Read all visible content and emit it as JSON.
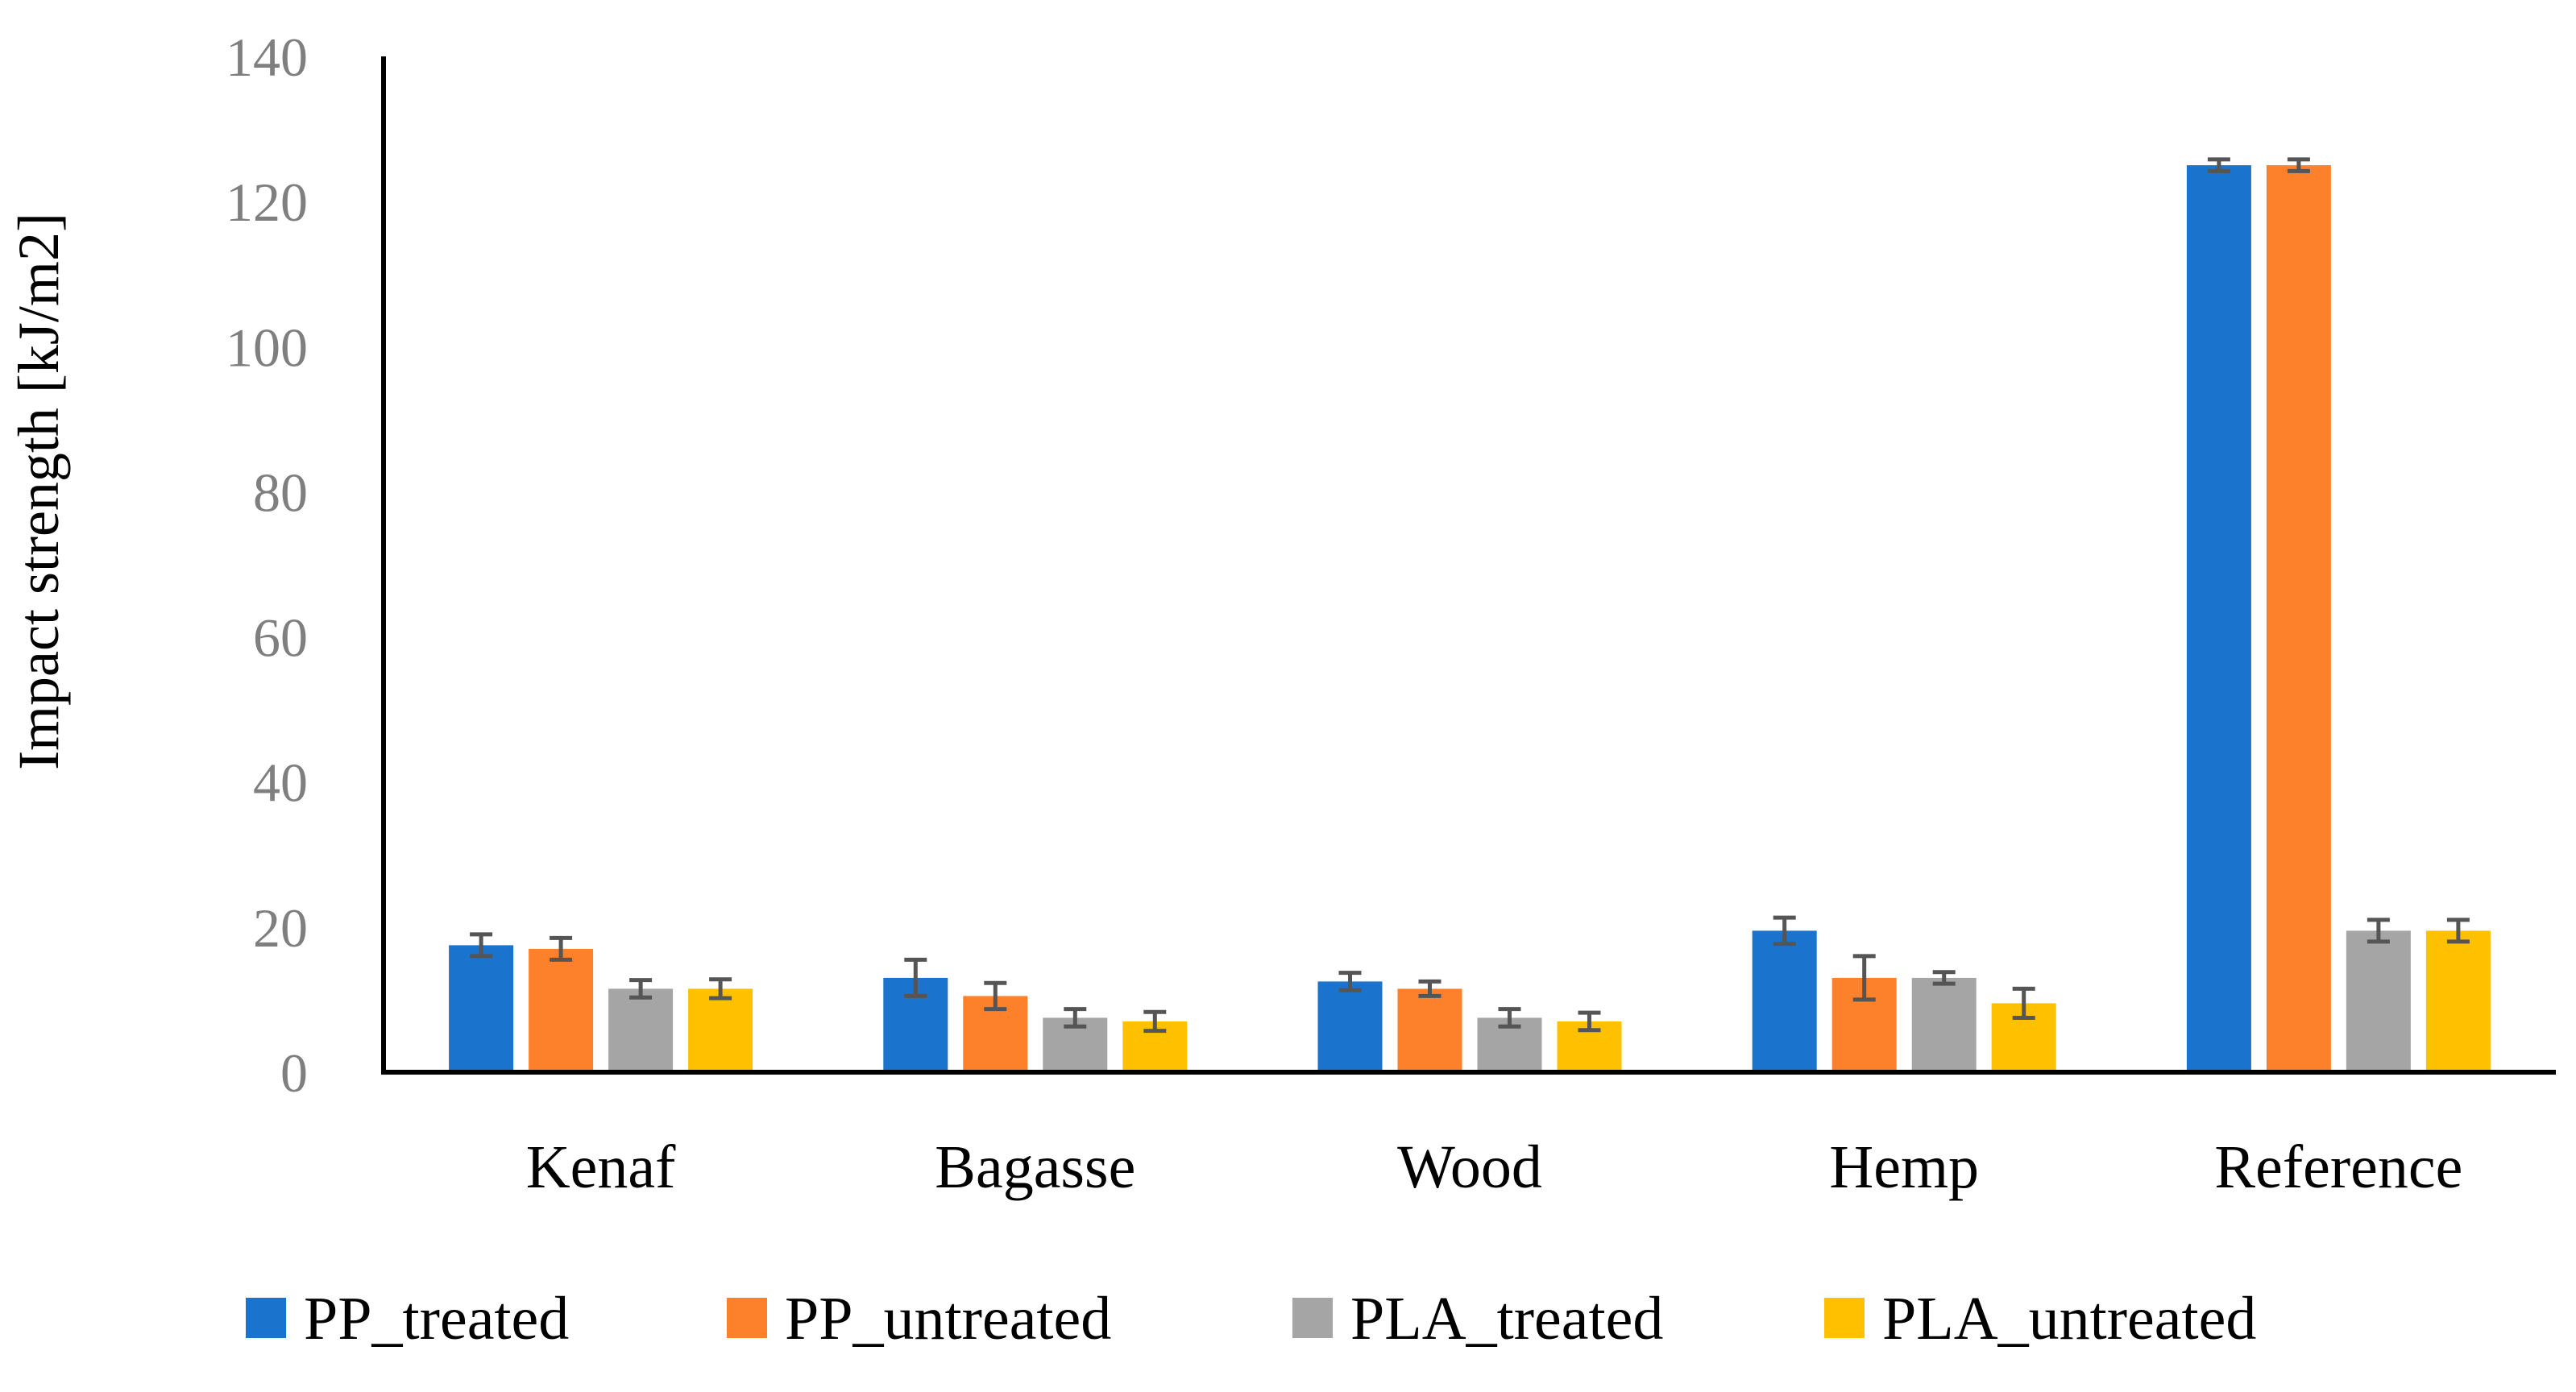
{
  "chart_data": {
    "type": "bar",
    "title": "",
    "xlabel": "",
    "ylabel": "Impact strength [kJ/m2]",
    "ylim": [
      0,
      140
    ],
    "yticks": [
      0,
      20,
      40,
      60,
      80,
      100,
      120,
      140
    ],
    "grid": false,
    "legend_position": "bottom",
    "categories": [
      "Kenaf",
      "Bagasse",
      "Wood",
      "Hemp",
      "Reference"
    ],
    "series": [
      {
        "name": "PP_treated",
        "color": "#1a73cc",
        "values": [
          17.5,
          13,
          12.5,
          19.5,
          125
        ],
        "errors": [
          1.5,
          2.5,
          1.2,
          1.8,
          0.8
        ]
      },
      {
        "name": "PP_untreated",
        "color": "#fd812b",
        "values": [
          17,
          10.5,
          11.5,
          13,
          125
        ],
        "errors": [
          1.5,
          1.8,
          1,
          3,
          0.8
        ]
      },
      {
        "name": "PLA_treated",
        "color": "#a5a5a5",
        "values": [
          11.5,
          7.5,
          7.5,
          13,
          19.5
        ],
        "errors": [
          1.2,
          1.2,
          1.2,
          0.8,
          1.5
        ]
      },
      {
        "name": "PLA_untreated",
        "color": "#ffc000",
        "values": [
          11.5,
          7,
          7,
          9.5,
          19.5
        ],
        "errors": [
          1.3,
          1.3,
          1.2,
          2,
          1.5
        ]
      }
    ]
  }
}
